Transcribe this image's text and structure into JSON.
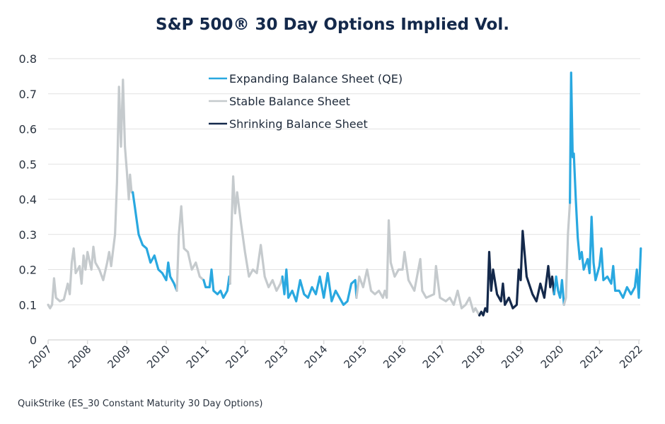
{
  "chart_data": {
    "type": "line",
    "title": "S&P 500® 30 Day Options Implied Vol.",
    "xlabel": "",
    "ylabel": "",
    "source_note": "QuikStrike (ES_30 Constant Maturity 30 Day Options)",
    "ylim": [
      0,
      0.8
    ],
    "xlim": [
      2007,
      2022
    ],
    "grid": true,
    "legend_position": "top-center",
    "y_ticks": [
      "0",
      "0.1",
      "0.2",
      "0.3",
      "0.4",
      "0.5",
      "0.6",
      "0.7",
      "0.8"
    ],
    "x_ticks": [
      "2007",
      "2008",
      "2009",
      "2010",
      "2011",
      "2012",
      "2013",
      "2014",
      "2015",
      "2016",
      "2017",
      "2018",
      "2019",
      "2020",
      "2021",
      "2022"
    ],
    "colors": {
      "expanding": "#29a8e0",
      "stable": "#c5cacd",
      "shrinking": "#14294b"
    },
    "series": [
      {
        "name": "Expanding Balance Sheet (QE)",
        "key": "expanding"
      },
      {
        "name": "Stable Balance Sheet",
        "key": "stable"
      },
      {
        "name": "Shrinking Balance Sheet",
        "key": "shrinking"
      }
    ],
    "segments": [
      {
        "regime": "stable",
        "points": [
          [
            2007.0,
            0.1
          ],
          [
            2007.05,
            0.09
          ],
          [
            2007.1,
            0.1
          ],
          [
            2007.15,
            0.175
          ],
          [
            2007.2,
            0.12
          ],
          [
            2007.3,
            0.11
          ],
          [
            2007.4,
            0.115
          ],
          [
            2007.5,
            0.16
          ],
          [
            2007.55,
            0.13
          ],
          [
            2007.6,
            0.22
          ],
          [
            2007.65,
            0.26
          ],
          [
            2007.7,
            0.19
          ],
          [
            2007.8,
            0.21
          ],
          [
            2007.85,
            0.16
          ],
          [
            2007.9,
            0.24
          ],
          [
            2007.95,
            0.2
          ],
          [
            2008.0,
            0.25
          ],
          [
            2008.1,
            0.2
          ],
          [
            2008.15,
            0.265
          ],
          [
            2008.2,
            0.22
          ],
          [
            2008.3,
            0.2
          ],
          [
            2008.4,
            0.17
          ],
          [
            2008.5,
            0.22
          ],
          [
            2008.55,
            0.25
          ],
          [
            2008.6,
            0.21
          ],
          [
            2008.7,
            0.3
          ],
          [
            2008.75,
            0.45
          ],
          [
            2008.8,
            0.72
          ],
          [
            2008.85,
            0.55
          ],
          [
            2008.9,
            0.74
          ],
          [
            2008.95,
            0.55
          ],
          [
            2009.0,
            0.48
          ],
          [
            2009.05,
            0.4
          ],
          [
            2009.08,
            0.47
          ],
          [
            2009.12,
            0.42
          ],
          [
            2009.15,
            0.42
          ]
        ]
      },
      {
        "regime": "expanding",
        "points": [
          [
            2009.15,
            0.42
          ],
          [
            2009.2,
            0.38
          ],
          [
            2009.3,
            0.3
          ],
          [
            2009.4,
            0.27
          ],
          [
            2009.5,
            0.26
          ],
          [
            2009.6,
            0.22
          ],
          [
            2009.7,
            0.24
          ],
          [
            2009.8,
            0.2
          ],
          [
            2009.9,
            0.19
          ],
          [
            2010.0,
            0.17
          ],
          [
            2010.05,
            0.22
          ],
          [
            2010.1,
            0.18
          ],
          [
            2010.2,
            0.16
          ],
          [
            2010.27,
            0.14
          ]
        ]
      },
      {
        "regime": "stable",
        "points": [
          [
            2010.27,
            0.14
          ],
          [
            2010.32,
            0.3
          ],
          [
            2010.38,
            0.38
          ],
          [
            2010.45,
            0.26
          ],
          [
            2010.55,
            0.25
          ],
          [
            2010.65,
            0.2
          ],
          [
            2010.75,
            0.22
          ],
          [
            2010.85,
            0.18
          ],
          [
            2010.95,
            0.17
          ]
        ]
      },
      {
        "regime": "expanding",
        "points": [
          [
            2010.95,
            0.17
          ],
          [
            2011.0,
            0.15
          ],
          [
            2011.1,
            0.15
          ],
          [
            2011.15,
            0.2
          ],
          [
            2011.2,
            0.14
          ],
          [
            2011.3,
            0.13
          ],
          [
            2011.38,
            0.14
          ],
          [
            2011.45,
            0.12
          ],
          [
            2011.55,
            0.14
          ],
          [
            2011.6,
            0.18
          ],
          [
            2011.62,
            0.16
          ]
        ]
      },
      {
        "regime": "stable",
        "points": [
          [
            2011.62,
            0.16
          ],
          [
            2011.65,
            0.3
          ],
          [
            2011.7,
            0.465
          ],
          [
            2011.75,
            0.36
          ],
          [
            2011.8,
            0.42
          ],
          [
            2011.9,
            0.33
          ],
          [
            2012.0,
            0.25
          ],
          [
            2012.1,
            0.18
          ],
          [
            2012.2,
            0.2
          ],
          [
            2012.3,
            0.19
          ],
          [
            2012.4,
            0.27
          ],
          [
            2012.5,
            0.18
          ],
          [
            2012.6,
            0.15
          ],
          [
            2012.7,
            0.17
          ],
          [
            2012.8,
            0.14
          ],
          [
            2012.9,
            0.16
          ],
          [
            2012.95,
            0.18
          ]
        ]
      },
      {
        "regime": "expanding",
        "points": [
          [
            2012.95,
            0.18
          ],
          [
            2013.0,
            0.13
          ],
          [
            2013.05,
            0.2
          ],
          [
            2013.1,
            0.12
          ],
          [
            2013.2,
            0.14
          ],
          [
            2013.3,
            0.11
          ],
          [
            2013.4,
            0.17
          ],
          [
            2013.5,
            0.13
          ],
          [
            2013.6,
            0.12
          ],
          [
            2013.7,
            0.15
          ],
          [
            2013.8,
            0.13
          ],
          [
            2013.9,
            0.18
          ],
          [
            2014.0,
            0.12
          ],
          [
            2014.1,
            0.19
          ],
          [
            2014.2,
            0.11
          ],
          [
            2014.3,
            0.14
          ],
          [
            2014.4,
            0.12
          ],
          [
            2014.5,
            0.1
          ],
          [
            2014.6,
            0.11
          ],
          [
            2014.7,
            0.16
          ],
          [
            2014.8,
            0.17
          ],
          [
            2014.83,
            0.12
          ]
        ]
      },
      {
        "regime": "stable",
        "points": [
          [
            2014.83,
            0.12
          ],
          [
            2014.9,
            0.18
          ],
          [
            2015.0,
            0.15
          ],
          [
            2015.1,
            0.2
          ],
          [
            2015.2,
            0.14
          ],
          [
            2015.3,
            0.13
          ],
          [
            2015.4,
            0.14
          ],
          [
            2015.5,
            0.12
          ],
          [
            2015.55,
            0.14
          ],
          [
            2015.6,
            0.12
          ],
          [
            2015.65,
            0.34
          ],
          [
            2015.7,
            0.22
          ],
          [
            2015.8,
            0.18
          ],
          [
            2015.9,
            0.2
          ],
          [
            2016.0,
            0.2
          ],
          [
            2016.05,
            0.25
          ],
          [
            2016.15,
            0.17
          ],
          [
            2016.3,
            0.14
          ],
          [
            2016.45,
            0.23
          ],
          [
            2016.5,
            0.14
          ],
          [
            2016.6,
            0.12
          ],
          [
            2016.8,
            0.13
          ],
          [
            2016.85,
            0.21
          ],
          [
            2016.95,
            0.12
          ],
          [
            2017.1,
            0.11
          ],
          [
            2017.2,
            0.12
          ],
          [
            2017.3,
            0.1
          ],
          [
            2017.4,
            0.14
          ],
          [
            2017.5,
            0.09
          ],
          [
            2017.6,
            0.1
          ],
          [
            2017.7,
            0.12
          ],
          [
            2017.8,
            0.08
          ],
          [
            2017.85,
            0.09
          ],
          [
            2017.95,
            0.07
          ]
        ]
      },
      {
        "regime": "shrinking",
        "points": [
          [
            2017.95,
            0.07
          ],
          [
            2018.0,
            0.08
          ],
          [
            2018.05,
            0.07
          ],
          [
            2018.1,
            0.09
          ],
          [
            2018.15,
            0.08
          ],
          [
            2018.2,
            0.25
          ],
          [
            2018.25,
            0.14
          ],
          [
            2018.3,
            0.2
          ],
          [
            2018.4,
            0.13
          ],
          [
            2018.5,
            0.11
          ],
          [
            2018.55,
            0.16
          ],
          [
            2018.6,
            0.1
          ],
          [
            2018.7,
            0.12
          ],
          [
            2018.8,
            0.09
          ],
          [
            2018.9,
            0.1
          ],
          [
            2018.95,
            0.2
          ],
          [
            2019.0,
            0.17
          ],
          [
            2019.05,
            0.31
          ],
          [
            2019.15,
            0.18
          ],
          [
            2019.3,
            0.13
          ],
          [
            2019.4,
            0.11
          ],
          [
            2019.5,
            0.16
          ],
          [
            2019.6,
            0.12
          ],
          [
            2019.7,
            0.21
          ],
          [
            2019.75,
            0.15
          ],
          [
            2019.8,
            0.18
          ],
          [
            2019.85,
            0.13
          ]
        ]
      },
      {
        "regime": "expanding",
        "points": [
          [
            2019.85,
            0.13
          ],
          [
            2019.9,
            0.18
          ],
          [
            2019.95,
            0.14
          ],
          [
            2020.0,
            0.12
          ],
          [
            2020.05,
            0.17
          ],
          [
            2020.1,
            0.1
          ]
        ]
      },
      {
        "regime": "stable",
        "points": [
          [
            2020.1,
            0.1
          ],
          [
            2020.15,
            0.12
          ],
          [
            2020.2,
            0.3
          ],
          [
            2020.25,
            0.39
          ]
        ]
      },
      {
        "regime": "expanding",
        "points": [
          [
            2020.25,
            0.39
          ],
          [
            2020.28,
            0.76
          ],
          [
            2020.32,
            0.52
          ],
          [
            2020.35,
            0.53
          ],
          [
            2020.4,
            0.4
          ],
          [
            2020.45,
            0.29
          ],
          [
            2020.5,
            0.23
          ],
          [
            2020.55,
            0.25
          ],
          [
            2020.6,
            0.2
          ],
          [
            2020.7,
            0.23
          ],
          [
            2020.75,
            0.19
          ],
          [
            2020.8,
            0.35
          ],
          [
            2020.85,
            0.22
          ],
          [
            2020.9,
            0.17
          ],
          [
            2021.0,
            0.21
          ],
          [
            2021.05,
            0.26
          ],
          [
            2021.1,
            0.17
          ],
          [
            2021.2,
            0.18
          ],
          [
            2021.3,
            0.16
          ],
          [
            2021.35,
            0.21
          ],
          [
            2021.4,
            0.14
          ],
          [
            2021.5,
            0.14
          ],
          [
            2021.6,
            0.12
          ],
          [
            2021.7,
            0.15
          ],
          [
            2021.8,
            0.13
          ],
          [
            2021.9,
            0.15
          ],
          [
            2021.95,
            0.2
          ],
          [
            2022.0,
            0.12
          ],
          [
            2022.05,
            0.26
          ]
        ]
      }
    ]
  }
}
